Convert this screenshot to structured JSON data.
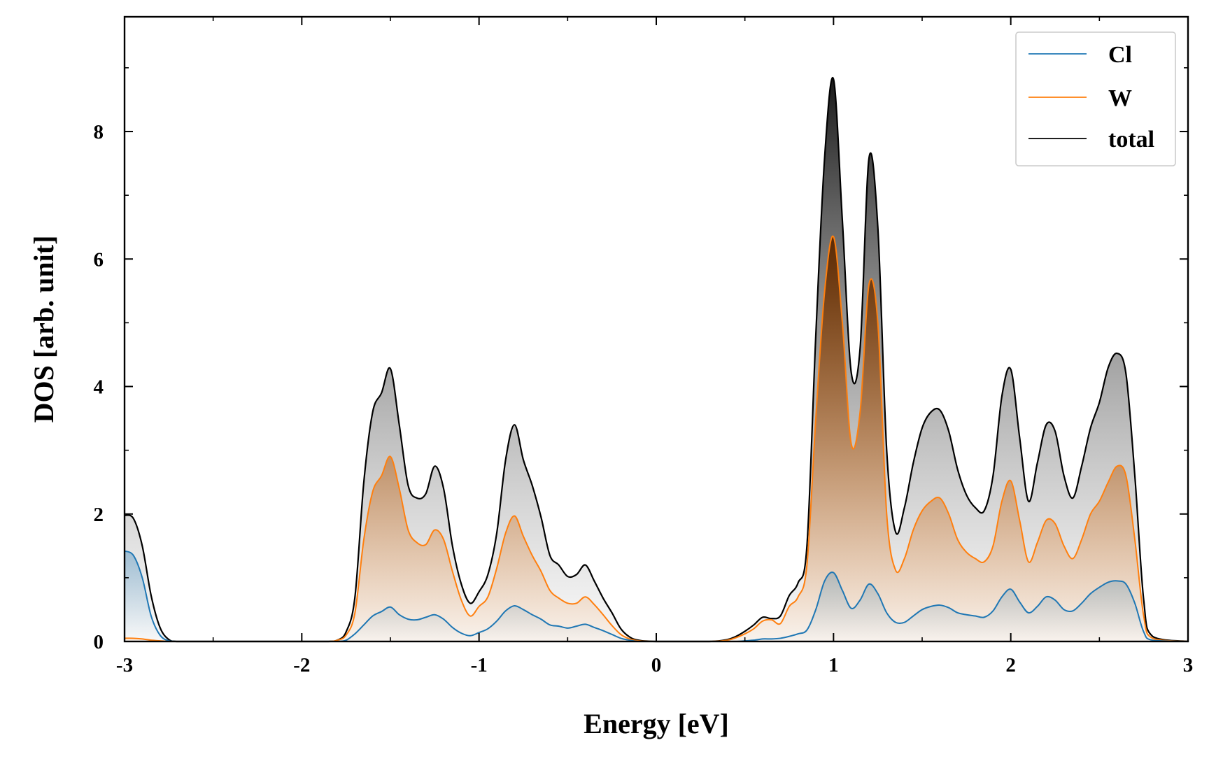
{
  "chart_data": {
    "type": "area",
    "title": "",
    "xlabel": "Energy [eV]",
    "ylabel": "DOS [arb. unit]",
    "xlim": [
      -3,
      3
    ],
    "ylim": [
      0,
      9.8
    ],
    "xticks": [
      -3,
      -2,
      -1,
      0,
      1,
      2,
      3
    ],
    "xtick_labels": [
      "-3",
      "-2",
      "-1",
      "0",
      "1",
      "2",
      "3"
    ],
    "yticks": [
      0,
      2,
      4,
      6,
      8
    ],
    "ytick_labels": [
      "0",
      "2",
      "4",
      "6",
      "8"
    ],
    "grid": false,
    "legend": {
      "position": "top-right",
      "entries": [
        "Cl",
        "W",
        "total"
      ]
    },
    "x": [
      -3.0,
      -2.95,
      -2.9,
      -2.85,
      -2.8,
      -2.75,
      -2.7,
      -2.5,
      -2.0,
      -1.85,
      -1.8,
      -1.75,
      -1.7,
      -1.65,
      -1.6,
      -1.55,
      -1.5,
      -1.45,
      -1.4,
      -1.35,
      -1.3,
      -1.25,
      -1.2,
      -1.15,
      -1.1,
      -1.05,
      -1.0,
      -0.95,
      -0.9,
      -0.85,
      -0.8,
      -0.75,
      -0.7,
      -0.65,
      -0.6,
      -0.55,
      -0.5,
      -0.45,
      -0.4,
      -0.35,
      -0.3,
      -0.25,
      -0.2,
      -0.15,
      -0.1,
      0.0,
      0.3,
      0.4,
      0.45,
      0.5,
      0.55,
      0.6,
      0.65,
      0.7,
      0.75,
      0.8,
      0.85,
      0.9,
      0.95,
      1.0,
      1.05,
      1.1,
      1.15,
      1.2,
      1.25,
      1.3,
      1.35,
      1.4,
      1.45,
      1.5,
      1.55,
      1.6,
      1.65,
      1.7,
      1.75,
      1.8,
      1.85,
      1.9,
      1.95,
      2.0,
      2.05,
      2.1,
      2.15,
      2.2,
      2.25,
      2.3,
      2.35,
      2.4,
      2.45,
      2.5,
      2.55,
      2.6,
      2.65,
      2.7,
      2.75,
      2.8,
      3.0
    ],
    "series": [
      {
        "name": "Cl",
        "color": "#1f77b4",
        "values": [
          1.42,
          1.35,
          1.0,
          0.4,
          0.1,
          0.01,
          0.0,
          0.0,
          0.0,
          0.0,
          0.0,
          0.02,
          0.12,
          0.26,
          0.4,
          0.47,
          0.54,
          0.42,
          0.35,
          0.34,
          0.38,
          0.42,
          0.35,
          0.22,
          0.13,
          0.09,
          0.14,
          0.2,
          0.32,
          0.48,
          0.56,
          0.5,
          0.42,
          0.35,
          0.26,
          0.24,
          0.21,
          0.24,
          0.27,
          0.22,
          0.17,
          0.11,
          0.05,
          0.02,
          0.0,
          0.0,
          0.0,
          0.0,
          0.0,
          0.01,
          0.02,
          0.04,
          0.04,
          0.05,
          0.08,
          0.12,
          0.18,
          0.5,
          0.95,
          1.08,
          0.8,
          0.52,
          0.65,
          0.9,
          0.75,
          0.45,
          0.3,
          0.3,
          0.4,
          0.5,
          0.55,
          0.57,
          0.53,
          0.45,
          0.42,
          0.4,
          0.38,
          0.48,
          0.7,
          0.82,
          0.62,
          0.45,
          0.55,
          0.7,
          0.65,
          0.5,
          0.48,
          0.6,
          0.75,
          0.85,
          0.93,
          0.95,
          0.9,
          0.6,
          0.15,
          0.02,
          0.0
        ]
      },
      {
        "name": "W",
        "color": "#ff7f0e",
        "values": [
          0.05,
          0.05,
          0.04,
          0.02,
          0.01,
          0.0,
          0.0,
          0.0,
          0.0,
          0.0,
          0.02,
          0.1,
          0.45,
          1.6,
          2.35,
          2.6,
          2.9,
          2.4,
          1.75,
          1.55,
          1.52,
          1.75,
          1.6,
          1.1,
          0.65,
          0.4,
          0.55,
          0.7,
          1.15,
          1.7,
          1.97,
          1.65,
          1.35,
          1.1,
          0.8,
          0.68,
          0.6,
          0.6,
          0.7,
          0.58,
          0.42,
          0.25,
          0.11,
          0.04,
          0.01,
          0.0,
          0.0,
          0.02,
          0.06,
          0.12,
          0.2,
          0.32,
          0.34,
          0.28,
          0.55,
          0.7,
          1.2,
          3.5,
          5.5,
          6.35,
          5.0,
          3.1,
          3.6,
          5.6,
          5.0,
          2.0,
          1.12,
          1.3,
          1.75,
          2.05,
          2.2,
          2.25,
          2.0,
          1.6,
          1.4,
          1.3,
          1.25,
          1.5,
          2.2,
          2.52,
          1.9,
          1.25,
          1.55,
          1.9,
          1.85,
          1.5,
          1.3,
          1.6,
          2.0,
          2.2,
          2.5,
          2.75,
          2.6,
          1.6,
          0.4,
          0.05,
          0.0
        ]
      },
      {
        "name": "total",
        "color": "#000000",
        "values": [
          1.98,
          1.93,
          1.5,
          0.72,
          0.22,
          0.03,
          0.0,
          0.0,
          0.0,
          0.0,
          0.02,
          0.15,
          0.7,
          2.5,
          3.6,
          3.9,
          4.28,
          3.4,
          2.45,
          2.25,
          2.32,
          2.75,
          2.4,
          1.5,
          0.9,
          0.6,
          0.78,
          1.05,
          1.7,
          2.85,
          3.4,
          2.85,
          2.45,
          1.95,
          1.35,
          1.2,
          1.02,
          1.05,
          1.2,
          0.95,
          0.68,
          0.45,
          0.2,
          0.07,
          0.02,
          0.0,
          0.0,
          0.03,
          0.08,
          0.16,
          0.26,
          0.38,
          0.36,
          0.4,
          0.72,
          0.92,
          1.5,
          4.8,
          7.6,
          8.82,
          6.6,
          4.22,
          4.6,
          7.58,
          6.5,
          3.0,
          1.72,
          2.1,
          2.8,
          3.35,
          3.6,
          3.63,
          3.3,
          2.7,
          2.3,
          2.1,
          2.05,
          2.6,
          3.85,
          4.27,
          3.2,
          2.2,
          2.8,
          3.4,
          3.3,
          2.6,
          2.25,
          2.75,
          3.35,
          3.75,
          4.3,
          4.52,
          4.2,
          2.6,
          0.65,
          0.08,
          0.0
        ]
      }
    ]
  }
}
